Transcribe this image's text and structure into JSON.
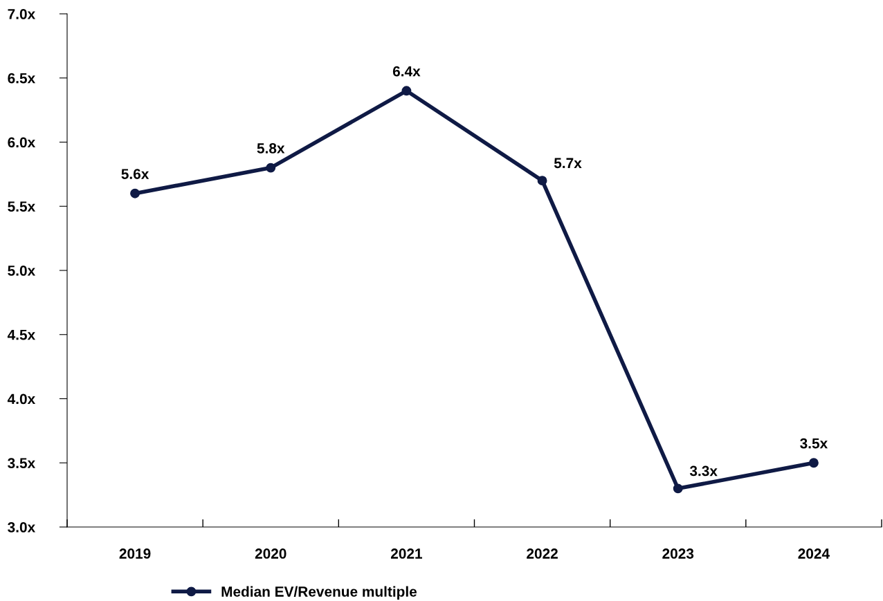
{
  "chart_data": {
    "type": "line",
    "categories": [
      "2019",
      "2020",
      "2021",
      "2022",
      "2023",
      "2024"
    ],
    "series": [
      {
        "name": "Median EV/Revenue multiple",
        "color": "#0f1a45",
        "values": [
          5.6,
          5.8,
          6.4,
          5.7,
          3.3,
          3.5
        ],
        "value_labels": [
          "5.6x",
          "5.8x",
          "6.4x",
          "5.7x",
          "3.3x",
          "3.5x"
        ]
      }
    ],
    "ylim": [
      3.0,
      7.0
    ],
    "yticks": [
      {
        "value": 3.0,
        "label": "3.0x"
      },
      {
        "value": 3.5,
        "label": "3.5x"
      },
      {
        "value": 4.0,
        "label": "4.0x"
      },
      {
        "value": 4.5,
        "label": "4.5x"
      },
      {
        "value": 5.0,
        "label": "5.0x"
      },
      {
        "value": 5.5,
        "label": "5.5x"
      },
      {
        "value": 6.0,
        "label": "6.0x"
      },
      {
        "value": 6.5,
        "label": "6.5x"
      },
      {
        "value": 7.0,
        "label": "7.0x"
      }
    ],
    "marker": "circle",
    "line_style": "solid",
    "grid": false,
    "legend": "bottom"
  }
}
